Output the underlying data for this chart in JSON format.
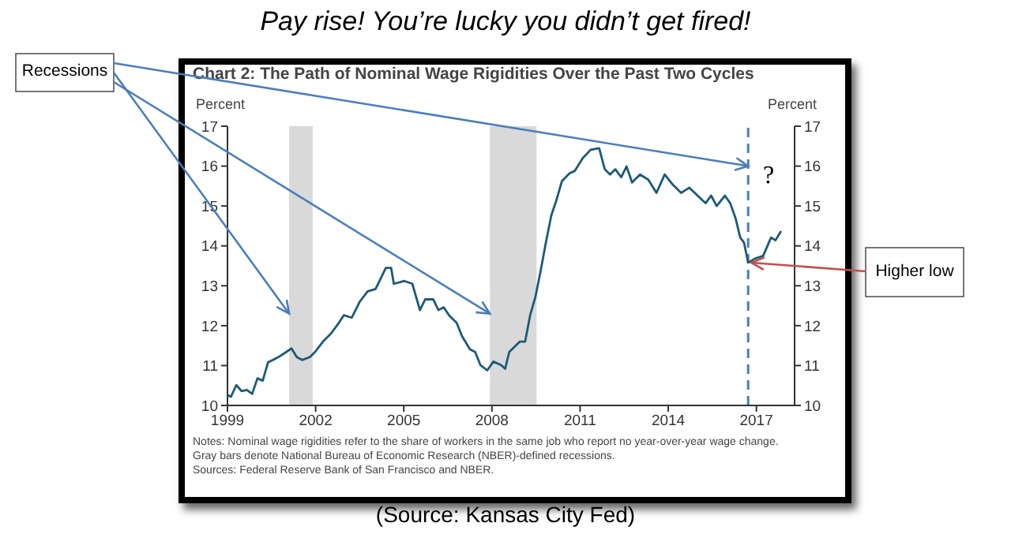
{
  "chart_data": {
    "type": "line",
    "title": "Chart 2: The Path of Nominal Wage Rigidities Over the Past Two Cycles",
    "ylabel": "Percent",
    "y2label": "Percent",
    "annotations": [
      "Pay rise! You’re lucky you didn’t get fired!",
      "Recessions",
      {
        "text": "Higher low",
        "x": 2016.72,
        "y": 13.58
      },
      "?",
      "Notes: Nominal wage rigidities refer to the share of workers in the same job who report no year-over-year wage change.",
      "Gray bars denote National Bureau of Economic Research (NBER)-defined recessions.",
      "Sources: Federal Reserve Bank of San Francisco and NBER.",
      "(Source: Kansas City Fed)"
    ],
    "x": [
      1999.0,
      1999.12,
      1999.3,
      1999.48,
      1999.66,
      1999.84,
      2000.02,
      2000.2,
      2000.38,
      2000.55,
      2000.73,
      2001.0,
      2001.18,
      2001.36,
      2001.54,
      2001.8,
      2001.98,
      2002.25,
      2002.52,
      2002.79,
      2002.96,
      2003.23,
      2003.5,
      2003.77,
      2004.04,
      2004.39,
      2004.57,
      2004.66,
      2005.02,
      2005.29,
      2005.55,
      2005.73,
      2006.0,
      2006.18,
      2006.36,
      2006.54,
      2006.8,
      2006.98,
      2007.25,
      2007.43,
      2007.61,
      2007.84,
      2008.05,
      2008.32,
      2008.45,
      2008.59,
      2008.95,
      2009.13,
      2009.3,
      2009.48,
      2009.66,
      2009.84,
      2010.02,
      2010.2,
      2010.38,
      2010.64,
      2010.82,
      2011.09,
      2011.36,
      2011.65,
      2011.84,
      2012.02,
      2012.2,
      2012.4,
      2012.58,
      2012.77,
      2013.04,
      2013.32,
      2013.6,
      2013.88,
      2014.16,
      2014.44,
      2014.72,
      2015.0,
      2015.27,
      2015.46,
      2015.65,
      2015.93,
      2016.11,
      2016.3,
      2016.45,
      2016.58,
      2016.72,
      2016.95,
      2017.23,
      2017.5,
      2017.65,
      2017.84
    ],
    "series": [
      {
        "color": "#1d5a78",
        "values": [
          10.26,
          10.22,
          10.51,
          10.36,
          10.39,
          10.29,
          10.68,
          10.62,
          11.08,
          11.14,
          11.21,
          11.34,
          11.43,
          11.21,
          11.14,
          11.21,
          11.34,
          11.6,
          11.8,
          12.07,
          12.26,
          12.2,
          12.6,
          12.86,
          12.92,
          13.45,
          13.45,
          13.05,
          13.12,
          13.05,
          12.39,
          12.66,
          12.66,
          12.39,
          12.46,
          12.26,
          12.07,
          11.74,
          11.41,
          11.34,
          11.01,
          10.88,
          11.1,
          11.01,
          10.92,
          11.34,
          11.6,
          11.6,
          12.26,
          12.72,
          13.38,
          14.1,
          14.76,
          15.16,
          15.62,
          15.82,
          15.88,
          16.2,
          16.41,
          16.45,
          15.92,
          15.79,
          15.92,
          15.72,
          15.99,
          15.59,
          15.79,
          15.66,
          15.33,
          15.79,
          15.53,
          15.33,
          15.46,
          15.26,
          15.07,
          15.26,
          15.0,
          15.26,
          15.07,
          14.67,
          14.21,
          14.08,
          13.58,
          13.68,
          13.75,
          14.21,
          14.14,
          14.37
        ]
      }
    ],
    "xlim": [
      1999,
      2018.3
    ],
    "xticks": [
      1999,
      2002,
      2005,
      2008,
      2011,
      2014,
      2017
    ],
    "ylim": [
      10,
      17
    ],
    "yticks": [
      10,
      11,
      12,
      13,
      14,
      15,
      16,
      17
    ],
    "y2lim": [
      10,
      17
    ],
    "y2ticks": [
      10,
      11,
      12,
      13,
      14,
      15,
      16,
      17
    ],
    "bands": [
      {
        "axis": "x",
        "from": 2001.1,
        "to": 2001.9,
        "color": "#d9d9d9"
      },
      {
        "axis": "x",
        "from": 2007.93,
        "to": 2009.52,
        "color": "#d9d9d9"
      }
    ],
    "ref_lines": [
      {
        "axis": "x",
        "value": 2016.72,
        "color": "#4a7ebb",
        "line_style": "dashed"
      }
    ],
    "grid": false,
    "legend": false,
    "marker": "none",
    "line_style": "solid"
  }
}
